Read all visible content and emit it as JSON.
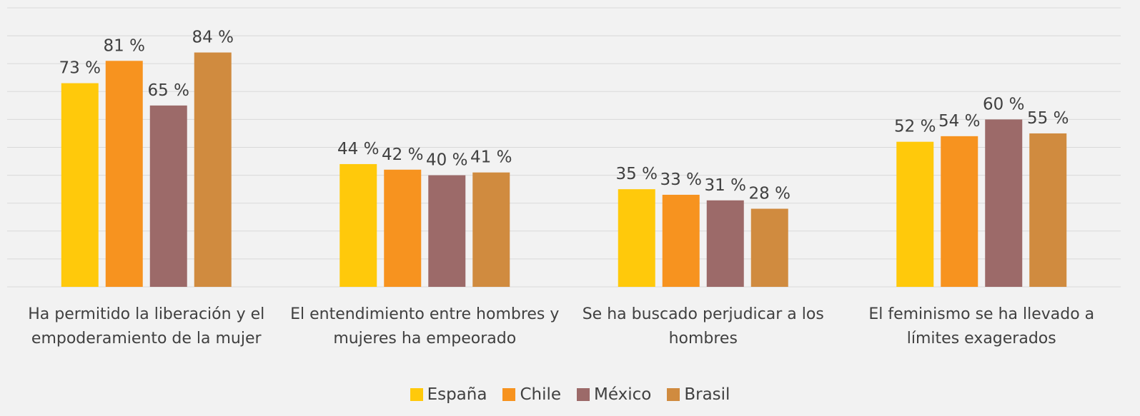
{
  "chart_data": {
    "type": "bar",
    "categories": [
      "Ha permitido la liberación y el empoderamiento de la mujer",
      "El entendimiento entre hombres y mujeres ha empeorado",
      "Se ha buscado perjudicar a los hombres",
      "El feminismo se ha llevado a límites exagerados"
    ],
    "series": [
      {
        "name": "España",
        "color": "#ffc90b",
        "values": [
          73,
          44,
          35,
          52
        ],
        "value_labels": [
          "73 %",
          "44 %",
          "35 %",
          "52 %"
        ]
      },
      {
        "name": "Chile",
        "color": "#f7931f",
        "values": [
          81,
          42,
          33,
          54
        ],
        "value_labels": [
          "81 %",
          "42 %",
          "33 %",
          "54 %"
        ]
      },
      {
        "name": "México",
        "color": "#9c6a69",
        "values": [
          65,
          40,
          31,
          60
        ],
        "value_labels": [
          "65 %",
          "40 %",
          "31 %",
          "60 %"
        ]
      },
      {
        "name": "Brasil",
        "color": "#d08b3f",
        "values": [
          84,
          41,
          28,
          55
        ],
        "value_labels": [
          "84 %",
          "41 %",
          "28 %",
          "55 %"
        ]
      }
    ],
    "ylim": [
      0,
      100
    ],
    "yticks": [
      0,
      10,
      20,
      30,
      40,
      50,
      60,
      70,
      80,
      90,
      100
    ],
    "grid": true,
    "legend": "bottom"
  }
}
